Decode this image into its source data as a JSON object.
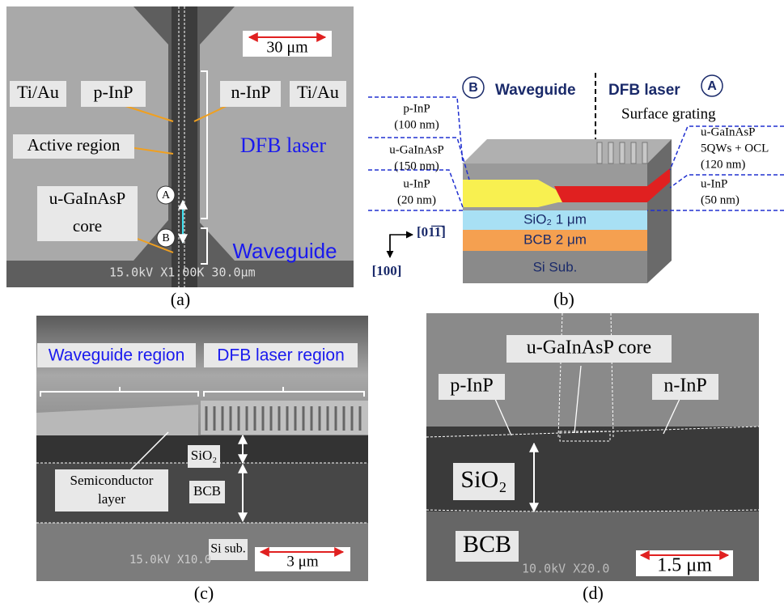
{
  "panel_a": {
    "caption": "(a)",
    "scale_bar": "30 μm",
    "sem_info": "15.0kV X1.00K 30.0μm",
    "labels": {
      "ti_au_left": "Ti/Au",
      "p_inp": "p-InP",
      "n_inp": "n-InP",
      "ti_au_right": "Ti/Au",
      "active_region": "Active region",
      "dfb_laser": "DFB laser",
      "core": [
        "u-GaInAsP",
        "core"
      ],
      "marker_a": "A",
      "marker_b": "B",
      "waveguide": "Waveguide"
    }
  },
  "panel_b": {
    "caption": "(b)",
    "marker_b": "B",
    "waveguide": "Waveguide",
    "dfb_laser": "DFB laser",
    "marker_a": "A",
    "surface_grating": "Surface grating",
    "left_layers": [
      [
        "p-InP",
        "(100 nm)"
      ],
      [
        "u-GaInAsP",
        "(150 nm)"
      ],
      [
        "u-InP",
        "(20 nm)"
      ]
    ],
    "right_layers": [
      [
        "u-GaInAsP",
        "5QWs + OCL",
        "(120 nm)"
      ],
      [
        "u-InP",
        "(50 nm)"
      ]
    ],
    "sio2": "SiO₂  1 μm",
    "bcb": "BCB  2 μm",
    "si_sub": "Si Sub.",
    "axis_horizontal": "[01̅1̅]",
    "axis_vertical": "[100]"
  },
  "panel_c": {
    "caption": "(c)",
    "waveguide_region": "Waveguide region",
    "dfb_laser_region": "DFB laser region",
    "sio2": "SiO₂",
    "bcb": "BCB",
    "semiconductor_layer": [
      "Semiconductor",
      "layer"
    ],
    "si_sub": "Si sub.",
    "scale_bar": "3 μm",
    "sem_info": "15.0kV X10.0"
  },
  "panel_d": {
    "caption": "(d)",
    "core": "u-GaInAsP core",
    "p_inp": "p-InP",
    "n_inp": "n-InP",
    "sio2": "SiO₂",
    "bcb": "BCB",
    "scale_bar": "1.5 μm",
    "sem_info": "10.0kV X20.0"
  }
}
